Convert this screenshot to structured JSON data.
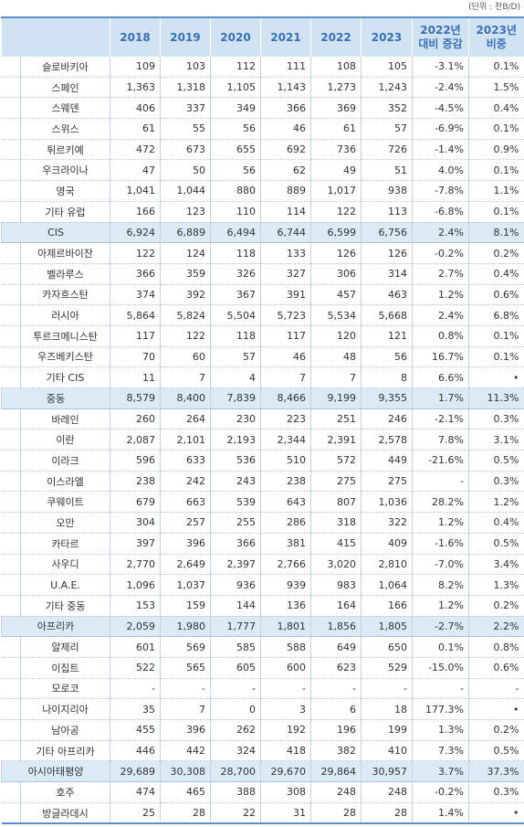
{
  "unit": "(단위 : 천B/D)",
  "table": {
    "columns": [
      "2018",
      "2019",
      "2020",
      "2021",
      "2022",
      "2023",
      "2022년 대비 증감",
      "2023년 비중"
    ],
    "rows": [
      {
        "name": "슬로바키아",
        "values": [
          "109",
          "103",
          "112",
          "111",
          "108",
          "105",
          "-3.1%",
          "0.1%"
        ]
      },
      {
        "name": "스페인",
        "values": [
          "1,363",
          "1,318",
          "1,105",
          "1,143",
          "1,273",
          "1,243",
          "-2.4%",
          "1.5%"
        ]
      },
      {
        "name": "스웨덴",
        "values": [
          "406",
          "337",
          "349",
          "366",
          "369",
          "352",
          "-4.5%",
          "0.4%"
        ]
      },
      {
        "name": "스위스",
        "values": [
          "61",
          "55",
          "56",
          "46",
          "61",
          "57",
          "-6.9%",
          "0.1%"
        ]
      },
      {
        "name": "튀르키예",
        "values": [
          "472",
          "673",
          "655",
          "692",
          "736",
          "726",
          "-1.4%",
          "0.9%"
        ]
      },
      {
        "name": "우크라이나",
        "values": [
          "47",
          "50",
          "56",
          "62",
          "49",
          "51",
          "4.0%",
          "0.1%"
        ]
      },
      {
        "name": "영국",
        "values": [
          "1,041",
          "1,044",
          "880",
          "889",
          "1,017",
          "938",
          "-7.8%",
          "1.1%"
        ]
      },
      {
        "name": "기타 유럽",
        "values": [
          "166",
          "123",
          "110",
          "114",
          "122",
          "113",
          "-6.8%",
          "0.1%"
        ]
      },
      {
        "name": "CIS",
        "group": true,
        "values": [
          "6,924",
          "6,889",
          "6,494",
          "6,744",
          "6,599",
          "6,756",
          "2.4%",
          "8.1%"
        ]
      },
      {
        "name": "아제르바이잔",
        "values": [
          "122",
          "124",
          "118",
          "133",
          "126",
          "126",
          "-0.2%",
          "0.2%"
        ]
      },
      {
        "name": "벨라루스",
        "values": [
          "366",
          "359",
          "326",
          "327",
          "306",
          "314",
          "2.7%",
          "0.4%"
        ]
      },
      {
        "name": "카자흐스탄",
        "values": [
          "374",
          "392",
          "367",
          "391",
          "457",
          "463",
          "1.2%",
          "0.6%"
        ]
      },
      {
        "name": "러시아",
        "values": [
          "5,864",
          "5,824",
          "5,504",
          "5,723",
          "5,534",
          "5,668",
          "2.4%",
          "6.8%"
        ]
      },
      {
        "name": "투르크메니스탄",
        "values": [
          "117",
          "122",
          "118",
          "117",
          "120",
          "121",
          "0.8%",
          "0.1%"
        ]
      },
      {
        "name": "우즈베키스탄",
        "values": [
          "70",
          "60",
          "57",
          "46",
          "48",
          "56",
          "16.7%",
          "0.1%"
        ]
      },
      {
        "name": "기타 CIS",
        "values": [
          "11",
          "7",
          "4",
          "7",
          "7",
          "8",
          "6.6%",
          "•"
        ]
      },
      {
        "name": "중동",
        "group": true,
        "values": [
          "8,579",
          "8,400",
          "7,839",
          "8,466",
          "9,199",
          "9,355",
          "1.7%",
          "11.3%"
        ]
      },
      {
        "name": "바레인",
        "values": [
          "260",
          "264",
          "230",
          "223",
          "251",
          "246",
          "-2.1%",
          "0.3%"
        ]
      },
      {
        "name": "이란",
        "values": [
          "2,087",
          "2,101",
          "2,193",
          "2,344",
          "2,391",
          "2,578",
          "7.8%",
          "3.1%"
        ]
      },
      {
        "name": "이라크",
        "values": [
          "596",
          "633",
          "536",
          "510",
          "572",
          "449",
          "-21.6%",
          "0.5%"
        ]
      },
      {
        "name": "이스라엘",
        "values": [
          "238",
          "242",
          "243",
          "238",
          "275",
          "275",
          "-",
          "0.3%"
        ]
      },
      {
        "name": "쿠웨이트",
        "values": [
          "679",
          "663",
          "539",
          "643",
          "807",
          "1,036",
          "28.2%",
          "1.2%"
        ]
      },
      {
        "name": "오만",
        "values": [
          "304",
          "257",
          "255",
          "286",
          "318",
          "322",
          "1.2%",
          "0.4%"
        ]
      },
      {
        "name": "카타르",
        "values": [
          "397",
          "396",
          "366",
          "381",
          "415",
          "409",
          "-1.6%",
          "0.5%"
        ]
      },
      {
        "name": "사우디",
        "values": [
          "2,770",
          "2,649",
          "2,397",
          "2,766",
          "3,020",
          "2,810",
          "-7.0%",
          "3.4%"
        ]
      },
      {
        "name": "U.A.E.",
        "values": [
          "1,096",
          "1,037",
          "936",
          "939",
          "983",
          "1,064",
          "8.2%",
          "1.3%"
        ]
      },
      {
        "name": "기타 중동",
        "values": [
          "153",
          "159",
          "144",
          "136",
          "164",
          "166",
          "1.2%",
          "0.2%"
        ]
      },
      {
        "name": "아프리카",
        "group": true,
        "values": [
          "2,059",
          "1,980",
          "1,777",
          "1,801",
          "1,856",
          "1,805",
          "-2.7%",
          "2.2%"
        ]
      },
      {
        "name": "알제리",
        "values": [
          "601",
          "569",
          "585",
          "588",
          "649",
          "650",
          "0.1%",
          "0.8%"
        ]
      },
      {
        "name": "이집트",
        "values": [
          "522",
          "565",
          "605",
          "600",
          "623",
          "529",
          "-15.0%",
          "0.6%"
        ]
      },
      {
        "name": "모로코",
        "values": [
          "-",
          "-",
          "-",
          "-",
          "-",
          "-",
          "-",
          "-"
        ]
      },
      {
        "name": "나이지리아",
        "values": [
          "35",
          "7",
          "0",
          "3",
          "6",
          "18",
          "177.3%",
          "•"
        ]
      },
      {
        "name": "남아공",
        "values": [
          "455",
          "396",
          "262",
          "192",
          "196",
          "199",
          "1.3%",
          "0.2%"
        ]
      },
      {
        "name": "기타 아프리카",
        "values": [
          "446",
          "442",
          "324",
          "418",
          "382",
          "410",
          "7.3%",
          "0.5%"
        ]
      },
      {
        "name": "아시아태평양",
        "group": true,
        "values": [
          "29,689",
          "30,308",
          "28,700",
          "29,670",
          "29,864",
          "30,957",
          "3.7%",
          "37.3%"
        ]
      },
      {
        "name": "호주",
        "values": [
          "474",
          "465",
          "388",
          "308",
          "248",
          "248",
          "-0.2%",
          "0.3%"
        ]
      },
      {
        "name": "방글라데시",
        "values": [
          "25",
          "28",
          "22",
          "31",
          "28",
          "28",
          "1.4%",
          "•"
        ]
      }
    ]
  }
}
